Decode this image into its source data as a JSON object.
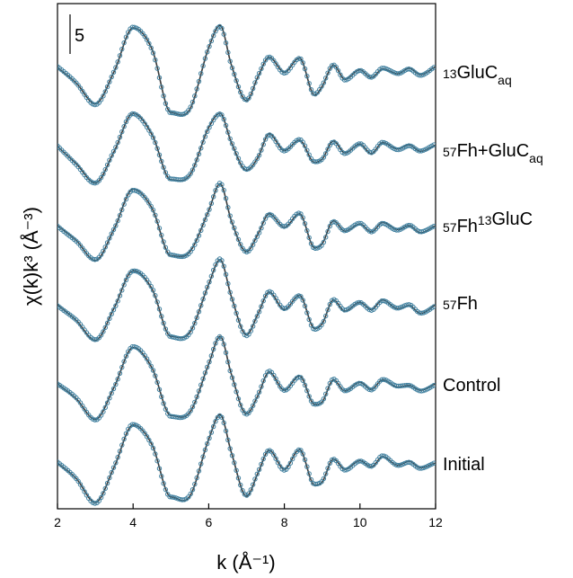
{
  "chart_data": {
    "type": "line",
    "title": "",
    "xlabel": "k (Å⁻¹)",
    "ylabel": "χ(k)k³ (Å⁻³)",
    "xlim": [
      2,
      12
    ],
    "x_ticks": [
      "2",
      "4",
      "6",
      "8",
      "10",
      "12"
    ],
    "y_ticks_shown": false,
    "stacked_offsets": true,
    "scale_bar_label": "5",
    "scale_bar_value": 5,
    "legend": "none; series labelled on right",
    "colors": {
      "fit": "#3a3a3a",
      "data": "#3f7f9e"
    },
    "series_names": [
      "¹³GluCₐq",
      "⁵⁷Fh+GluCₐq",
      "⁵⁷Fh¹³GluC",
      "⁵⁷Fh",
      "Control",
      "Initial"
    ],
    "series_labels": [
      {
        "sup": "13",
        "main": "GluC",
        "sub": "aq"
      },
      {
        "sup": "57",
        "main": "Fh+GluC",
        "sub": "aq"
      },
      {
        "sup": "57",
        "main": "Fh",
        "sup2": "13",
        "main2": "GluC"
      },
      {
        "sup": "57",
        "main": "Fh"
      },
      {
        "main": "Control"
      },
      {
        "main": "Initial"
      }
    ],
    "series_offsets": [
      0,
      -12,
      -24,
      -36,
      -48,
      -60
    ],
    "x": [
      2.0,
      2.5,
      3.0,
      3.5,
      4.0,
      4.5,
      5.0,
      5.5,
      6.0,
      6.3,
      6.6,
      7.0,
      7.3,
      7.6,
      8.0,
      8.4,
      8.8,
      9.0,
      9.3,
      9.6,
      10.0,
      10.3,
      10.6,
      11.0,
      11.3,
      11.6,
      12.0
    ],
    "series_values": [
      [
        0.0,
        -2.0,
        -4.6,
        -0.5,
        5.0,
        2.3,
        -5.7,
        -5.3,
        2.5,
        5.3,
        0.3,
        -4.2,
        -1.2,
        1.3,
        -0.6,
        1.2,
        -3.5,
        -2.4,
        0.3,
        -1.5,
        -0.3,
        -1.3,
        -0.2,
        -0.8,
        -0.1,
        -0.9,
        0.1
      ],
      [
        0.0,
        -2.2,
        -4.6,
        -0.6,
        4.2,
        1.5,
        -4.2,
        -3.6,
        2.4,
        4.2,
        0.5,
        -3.0,
        -1.4,
        1.6,
        -0.5,
        0.8,
        -2.0,
        -1.6,
        0.7,
        -0.8,
        0.3,
        -0.9,
        0.5,
        -0.3,
        0.2,
        -0.6,
        0.2
      ],
      [
        0.0,
        -1.9,
        -4.4,
        -0.4,
        4.6,
        2.2,
        -3.8,
        -3.3,
        1.9,
        5.3,
        0.6,
        -3.3,
        -1.1,
        1.5,
        -0.2,
        1.5,
        -2.8,
        -2.3,
        0.6,
        -0.7,
        0.2,
        -0.8,
        0.4,
        -0.5,
        0.0,
        -0.9,
        0.0
      ],
      [
        0.0,
        -2.0,
        -4.5,
        -0.4,
        4.3,
        2.0,
        -4.0,
        -3.5,
        2.6,
        5.7,
        1.0,
        -3.8,
        -1.2,
        1.6,
        -0.6,
        1.2,
        -3.0,
        -2.4,
        0.6,
        -0.8,
        0.3,
        -0.6,
        0.6,
        -0.5,
        -0.1,
        -1.1,
        0.0
      ],
      [
        0.0,
        -1.9,
        -4.5,
        -0.4,
        4.6,
        2.0,
        -4.0,
        -3.6,
        2.5,
        6.0,
        1.2,
        -3.8,
        -1.5,
        1.5,
        -0.8,
        1.0,
        -2.6,
        -2.3,
        0.5,
        -0.9,
        0.2,
        -0.7,
        0.5,
        -0.4,
        -0.2,
        -0.8,
        0.0
      ],
      [
        0.0,
        -2.0,
        -5.0,
        -0.5,
        4.8,
        2.3,
        -4.3,
        -4.2,
        3.0,
        6.1,
        1.3,
        -4.2,
        -1.3,
        1.6,
        -0.8,
        1.7,
        -2.8,
        -2.4,
        0.5,
        -0.8,
        0.3,
        -0.5,
        0.8,
        -0.3,
        0.2,
        -0.6,
        0.0
      ]
    ]
  }
}
